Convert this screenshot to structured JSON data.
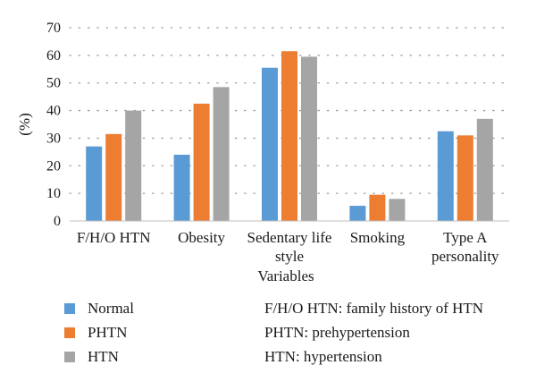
{
  "chart_data": {
    "type": "bar",
    "ylabel": "(%)",
    "xlabel": "Variables",
    "ylim": [
      0,
      70
    ],
    "yticks": [
      0,
      10,
      20,
      30,
      40,
      50,
      60,
      70
    ],
    "grid": "horizontal dotted",
    "categories": [
      [
        "F/H/O HTN"
      ],
      [
        "Obesity"
      ],
      [
        "Sedentary life",
        "style"
      ],
      [
        "Smoking"
      ],
      [
        "Type A",
        "personality"
      ]
    ],
    "series": [
      {
        "name": "Normal",
        "color": "#5b9bd5",
        "values": [
          27,
          24,
          55.5,
          5.5,
          32.5
        ]
      },
      {
        "name": "PHTN",
        "color": "#ed7d31",
        "values": [
          31.5,
          42.5,
          61.5,
          9.5,
          31
        ]
      },
      {
        "name": "HTN",
        "color": "#a5a5a5",
        "values": [
          40,
          48.5,
          59.5,
          8,
          37
        ]
      }
    ],
    "legend": "bottom-left"
  },
  "notes": [
    "F/H/O HTN: family history of HTN",
    "PHTN: prehypertension",
    "HTN: hypertension"
  ]
}
